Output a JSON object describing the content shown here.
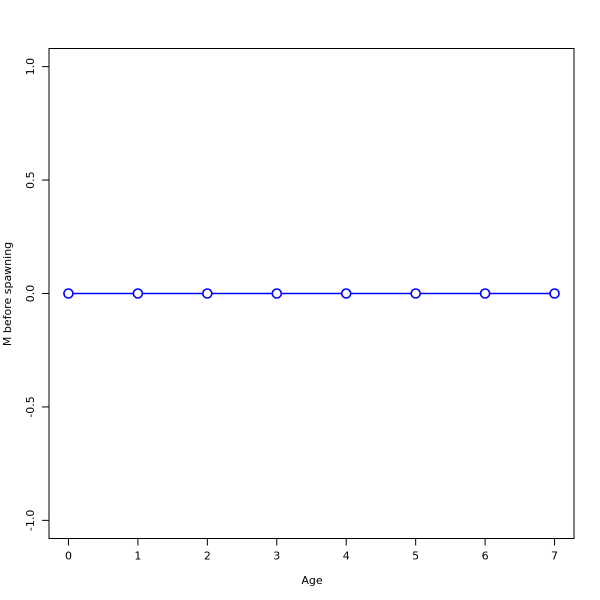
{
  "chart_data": {
    "type": "line",
    "title": "",
    "xlabel": "Age",
    "ylabel": "M before spawning",
    "x": [
      0,
      1,
      2,
      3,
      4,
      5,
      6,
      7
    ],
    "y": [
      0,
      0,
      0,
      0,
      0,
      0,
      0,
      0
    ],
    "xlim": [
      -0.28,
      7.28
    ],
    "ylim": [
      -1.08,
      1.08
    ],
    "xticks": [
      "0",
      "1",
      "2",
      "3",
      "4",
      "5",
      "6",
      "7"
    ],
    "yticks": [
      "-1.0",
      "-0.5",
      "0.0",
      "0.5",
      "1.0"
    ],
    "grid": false,
    "marker": "open-circle",
    "colors": {
      "series": "#0000ff",
      "axis": "#000000"
    }
  }
}
